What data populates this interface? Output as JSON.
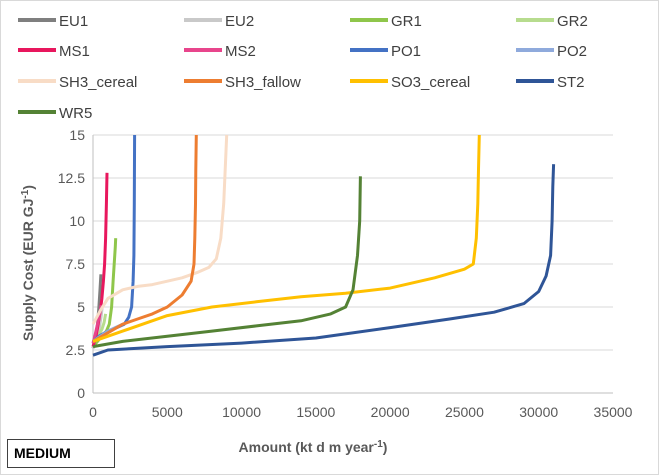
{
  "badge": "MEDIUM",
  "chart_data": {
    "type": "line",
    "xlabel": "Amount (kt d m year",
    "xlabel_sup": "-1",
    "xlabel_end": ")",
    "ylabel": "Supply Cost (EUR GJ",
    "ylabel_sup": "-1",
    "ylabel_end": ")",
    "xlim": [
      0,
      35000
    ],
    "ylim": [
      0,
      15
    ],
    "xticks": [
      0,
      5000,
      10000,
      15000,
      20000,
      25000,
      30000,
      35000
    ],
    "xtick_labels": [
      "0",
      "5000",
      "10000",
      "15000",
      "20000",
      "25000",
      "30000",
      "35000"
    ],
    "yticks": [
      0,
      2.5,
      5,
      7.5,
      10,
      12.5,
      15
    ],
    "ytick_labels": [
      "0",
      "2.5",
      "5",
      "7.5",
      "10",
      "12.5",
      "15"
    ],
    "grid": "horizontal",
    "legend_position": "top",
    "series": [
      {
        "name": "EU1",
        "color": "#7f7f7f",
        "points": [
          [
            0,
            2.6
          ],
          [
            100,
            2.9
          ],
          [
            200,
            3.3
          ],
          [
            300,
            4.0
          ],
          [
            400,
            5.0
          ],
          [
            470,
            6.0
          ],
          [
            530,
            6.9
          ]
        ]
      },
      {
        "name": "EU2",
        "color": "#c9c9c9",
        "points": [
          [
            0,
            2.6
          ],
          [
            150,
            2.9
          ],
          [
            300,
            3.3
          ],
          [
            450,
            3.9
          ],
          [
            550,
            4.5
          ],
          [
            620,
            5.0
          ]
        ]
      },
      {
        "name": "GR1",
        "color": "#8fc64b",
        "points": [
          [
            0,
            2.7
          ],
          [
            300,
            3.0
          ],
          [
            600,
            3.3
          ],
          [
            900,
            3.6
          ],
          [
            1100,
            4.0
          ],
          [
            1250,
            5.0
          ],
          [
            1350,
            6.5
          ],
          [
            1430,
            7.5
          ],
          [
            1500,
            8.5
          ],
          [
            1530,
            9.0
          ]
        ]
      },
      {
        "name": "GR2",
        "color": "#b7dc8e",
        "points": [
          [
            0,
            2.8
          ],
          [
            200,
            3.1
          ],
          [
            400,
            3.4
          ],
          [
            600,
            3.7
          ],
          [
            750,
            4.1
          ],
          [
            850,
            4.6
          ]
        ]
      },
      {
        "name": "MS1",
        "color": "#e8175d",
        "points": [
          [
            0,
            2.7
          ],
          [
            200,
            3.3
          ],
          [
            350,
            4.0
          ],
          [
            500,
            4.8
          ],
          [
            600,
            5.5
          ],
          [
            700,
            6.5
          ],
          [
            780,
            7.5
          ],
          [
            850,
            9.0
          ],
          [
            900,
            11.0
          ],
          [
            940,
            12.8
          ]
        ]
      },
      {
        "name": "MS2",
        "color": "#e8458c",
        "points": [
          [
            0,
            2.9
          ],
          [
            150,
            3.4
          ],
          [
            300,
            4.0
          ],
          [
            450,
            4.6
          ],
          [
            550,
            5.1
          ]
        ]
      },
      {
        "name": "PO1",
        "color": "#4472c4",
        "points": [
          [
            0,
            3.0
          ],
          [
            400,
            3.3
          ],
          [
            1000,
            3.6
          ],
          [
            1600,
            3.8
          ],
          [
            2100,
            4.0
          ],
          [
            2400,
            4.4
          ],
          [
            2600,
            5.0
          ],
          [
            2700,
            6.5
          ],
          [
            2750,
            8.0
          ],
          [
            2780,
            11.0
          ],
          [
            2800,
            15.0
          ]
        ]
      },
      {
        "name": "PO2",
        "color": "#8faadc",
        "points": [
          [
            0,
            3.0
          ],
          [
            500,
            3.3
          ],
          [
            1000,
            3.6
          ],
          [
            1500,
            3.8
          ],
          [
            2000,
            4.0
          ]
        ]
      },
      {
        "name": "SH3_cereal",
        "color": "#f8dcc6",
        "points": [
          [
            0,
            4.0
          ],
          [
            500,
            4.8
          ],
          [
            1000,
            5.5
          ],
          [
            2000,
            6.0
          ],
          [
            3000,
            6.2
          ],
          [
            4000,
            6.3
          ],
          [
            5000,
            6.5
          ],
          [
            6000,
            6.7
          ],
          [
            7000,
            7.0
          ],
          [
            7800,
            7.3
          ],
          [
            8300,
            7.8
          ],
          [
            8600,
            9.0
          ],
          [
            8800,
            11.0
          ],
          [
            8900,
            13.0
          ],
          [
            9000,
            15.0
          ]
        ]
      },
      {
        "name": "SH3_fallow",
        "color": "#ed7d31",
        "points": [
          [
            0,
            3.0
          ],
          [
            1000,
            3.5
          ],
          [
            2000,
            4.0
          ],
          [
            3000,
            4.3
          ],
          [
            4000,
            4.6
          ],
          [
            5000,
            5.0
          ],
          [
            6000,
            5.7
          ],
          [
            6600,
            6.5
          ],
          [
            6800,
            7.5
          ],
          [
            6850,
            9.0
          ],
          [
            6900,
            11.0
          ],
          [
            6920,
            13.0
          ],
          [
            6950,
            15.0
          ]
        ]
      },
      {
        "name": "SO3_cereal",
        "color": "#ffc000",
        "points": [
          [
            0,
            3.0
          ],
          [
            2000,
            3.6
          ],
          [
            5000,
            4.5
          ],
          [
            8000,
            5.0
          ],
          [
            11000,
            5.3
          ],
          [
            14000,
            5.6
          ],
          [
            17000,
            5.8
          ],
          [
            20000,
            6.1
          ],
          [
            23000,
            6.7
          ],
          [
            25000,
            7.2
          ],
          [
            25600,
            7.5
          ],
          [
            25800,
            9.0
          ],
          [
            25900,
            11.0
          ],
          [
            25950,
            13.0
          ],
          [
            26000,
            15.0
          ]
        ]
      },
      {
        "name": "ST2",
        "color": "#2f5597",
        "points": [
          [
            0,
            2.2
          ],
          [
            1000,
            2.5
          ],
          [
            5000,
            2.7
          ],
          [
            10000,
            2.9
          ],
          [
            15000,
            3.2
          ],
          [
            20000,
            3.8
          ],
          [
            24000,
            4.3
          ],
          [
            27000,
            4.7
          ],
          [
            29000,
            5.2
          ],
          [
            30000,
            5.9
          ],
          [
            30500,
            6.8
          ],
          [
            30800,
            8.0
          ],
          [
            30900,
            10.0
          ],
          [
            30950,
            12.0
          ],
          [
            31000,
            13.3
          ]
        ]
      },
      {
        "name": "WR5",
        "color": "#548235",
        "points": [
          [
            0,
            2.7
          ],
          [
            2000,
            3.0
          ],
          [
            5000,
            3.3
          ],
          [
            8000,
            3.6
          ],
          [
            11000,
            3.9
          ],
          [
            14000,
            4.2
          ],
          [
            16000,
            4.6
          ],
          [
            17000,
            5.0
          ],
          [
            17500,
            6.0
          ],
          [
            17800,
            8.0
          ],
          [
            17950,
            10.0
          ],
          [
            18000,
            12.6
          ]
        ]
      }
    ]
  }
}
